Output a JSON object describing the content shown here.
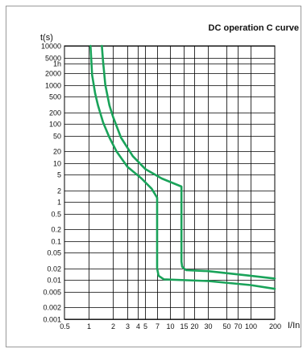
{
  "chart_data": {
    "type": "line",
    "title": "DC operation C curve",
    "ylabel": "t(s)",
    "xlabel": "I/In",
    "xscale": "log",
    "yscale": "log",
    "xlim": [
      0.5,
      200
    ],
    "ylim": [
      0.001,
      10000
    ],
    "grid": true,
    "legend": "none",
    "x_ticks": [
      {
        "value": 0.5,
        "label": "0.5"
      },
      {
        "value": 1,
        "label": "1"
      },
      {
        "value": 2,
        "label": "2"
      },
      {
        "value": 3,
        "label": "3"
      },
      {
        "value": 4,
        "label": "4"
      },
      {
        "value": 5,
        "label": "5"
      },
      {
        "value": 7,
        "label": "7"
      },
      {
        "value": 10,
        "label": "10"
      },
      {
        "value": 15,
        "label": "15"
      },
      {
        "value": 20,
        "label": "20"
      },
      {
        "value": 30,
        "label": "30"
      },
      {
        "value": 50,
        "label": "50"
      },
      {
        "value": 70,
        "label": "70"
      },
      {
        "value": 100,
        "label": "100"
      },
      {
        "value": 200,
        "label": "200"
      }
    ],
    "y_ticks": [
      {
        "value": 10000,
        "label": "10000"
      },
      {
        "value": 5000,
        "label": "5000"
      },
      {
        "value": 3600,
        "label": "1h"
      },
      {
        "value": 2000,
        "label": "2000"
      },
      {
        "value": 1000,
        "label": "1000"
      },
      {
        "value": 500,
        "label": "500"
      },
      {
        "value": 200,
        "label": "200"
      },
      {
        "value": 100,
        "label": "100"
      },
      {
        "value": 50,
        "label": "50"
      },
      {
        "value": 20,
        "label": "20"
      },
      {
        "value": 10,
        "label": "10"
      },
      {
        "value": 5,
        "label": "5"
      },
      {
        "value": 2,
        "label": "2"
      },
      {
        "value": 1,
        "label": "1"
      },
      {
        "value": 0.5,
        "label": "0.5"
      },
      {
        "value": 0.2,
        "label": "0.2"
      },
      {
        "value": 0.1,
        "label": "0.1"
      },
      {
        "value": 0.05,
        "label": "0.05"
      },
      {
        "value": 0.02,
        "label": "0.02"
      },
      {
        "value": 0.01,
        "label": "0.01"
      },
      {
        "value": 0.005,
        "label": "0.005"
      },
      {
        "value": 0.002,
        "label": "0.002"
      },
      {
        "value": 0.001,
        "label": "0.001"
      }
    ],
    "series": [
      {
        "color": "#1aa35a",
        "x": [
          1.05,
          1.1,
          1.2,
          1.3,
          1.5,
          1.8,
          2.2,
          3,
          4.5,
          6,
          7,
          7,
          7.3,
          8.5,
          30,
          100,
          200
        ],
        "y": [
          10000,
          1800,
          600,
          300,
          110,
          45,
          20,
          8,
          4,
          2.2,
          1.3,
          0.02,
          0.013,
          0.0105,
          0.0095,
          0.0075,
          0.006
        ]
      },
      {
        "color": "#1aa35a",
        "x": [
          1.45,
          1.5,
          1.6,
          1.8,
          2,
          2.5,
          3.5,
          5,
          8,
          14,
          14,
          14.3,
          16,
          30,
          100,
          200
        ],
        "y": [
          10000,
          4000,
          1000,
          300,
          150,
          45,
          15,
          7,
          4,
          2.5,
          0.03,
          0.022,
          0.018,
          0.017,
          0.013,
          0.011
        ]
      }
    ]
  }
}
